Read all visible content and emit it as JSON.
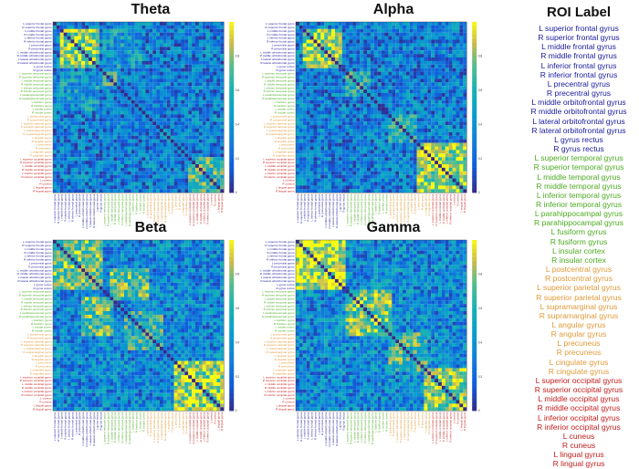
{
  "legend": {
    "title": "ROI Label"
  },
  "chart_data": {
    "type": "heatmap",
    "colormap": "parula",
    "value_range": [
      0,
      1
    ],
    "colorbar_ticks": [
      "0.8",
      "0.6",
      "0.4",
      "0.2",
      "0"
    ],
    "lobe_colors": {
      "frontal": "#1a1a9e",
      "temporal": "#4cab21",
      "parietal": "#e09a3a",
      "occipital": "#c41c1c"
    },
    "rois": [
      {
        "label": "L superior frontal gyrus",
        "lobe": "frontal"
      },
      {
        "label": "R superior frontal gyrus",
        "lobe": "frontal"
      },
      {
        "label": "L middle frontal gyrus",
        "lobe": "frontal"
      },
      {
        "label": "R middle frontal gyrus",
        "lobe": "frontal"
      },
      {
        "label": "L inferior frontal gyrus",
        "lobe": "frontal"
      },
      {
        "label": "R inferior frontal gyrus",
        "lobe": "frontal"
      },
      {
        "label": "L precentral gyrus",
        "lobe": "frontal"
      },
      {
        "label": "R precentral gyrus",
        "lobe": "frontal"
      },
      {
        "label": "L middle orbitofrontal gyrus",
        "lobe": "frontal"
      },
      {
        "label": "R middle orbitofrontal gyrus",
        "lobe": "frontal"
      },
      {
        "label": "L lateral orbitofrontal gyrus",
        "lobe": "frontal"
      },
      {
        "label": "R lateral orbitofrontal gyrus",
        "lobe": "frontal"
      },
      {
        "label": "L gyrus rectus",
        "lobe": "frontal"
      },
      {
        "label": "R gyrus rectus",
        "lobe": "frontal"
      },
      {
        "label": "L superior temporal gyrus",
        "lobe": "temporal"
      },
      {
        "label": "R superior temporal gyrus",
        "lobe": "temporal"
      },
      {
        "label": "L middle temporal gyrus",
        "lobe": "temporal"
      },
      {
        "label": "R middle temporal gyrus",
        "lobe": "temporal"
      },
      {
        "label": "L inferior temporal gyrus",
        "lobe": "temporal"
      },
      {
        "label": "R inferior temporal gyrus",
        "lobe": "temporal"
      },
      {
        "label": "L parahippocampal gyrus",
        "lobe": "temporal"
      },
      {
        "label": "R parahippocampal gyrus",
        "lobe": "temporal"
      },
      {
        "label": "L fusiform gyrus",
        "lobe": "temporal"
      },
      {
        "label": "R fusiform gyrus",
        "lobe": "temporal"
      },
      {
        "label": "L insular cortex",
        "lobe": "temporal"
      },
      {
        "label": "R insular cortex",
        "lobe": "temporal"
      },
      {
        "label": "L postcentral gyrus",
        "lobe": "parietal"
      },
      {
        "label": "R postcentral gyrus",
        "lobe": "parietal"
      },
      {
        "label": "L superior parietal gyrus",
        "lobe": "parietal"
      },
      {
        "label": "R superior parietal gyrus",
        "lobe": "parietal"
      },
      {
        "label": "L supramarginal gyrus",
        "lobe": "parietal"
      },
      {
        "label": "R supramarginal gyrus",
        "lobe": "parietal"
      },
      {
        "label": "L angular gyrus",
        "lobe": "parietal"
      },
      {
        "label": "R angular gyrus",
        "lobe": "parietal"
      },
      {
        "label": "L precuneus",
        "lobe": "parietal"
      },
      {
        "label": "R precuneus",
        "lobe": "parietal"
      },
      {
        "label": "L cingulate gyrus",
        "lobe": "parietal"
      },
      {
        "label": "R cingulate gyrus",
        "lobe": "parietal"
      },
      {
        "label": "L superior occipital gyrus",
        "lobe": "occipital"
      },
      {
        "label": "R superior occipital gyrus",
        "lobe": "occipital"
      },
      {
        "label": "L middle occipital gyrus",
        "lobe": "occipital"
      },
      {
        "label": "R middle occipital gyrus",
        "lobe": "occipital"
      },
      {
        "label": "L inferior occipital gyrus",
        "lobe": "occipital"
      },
      {
        "label": "R inferior occipital gyrus",
        "lobe": "occipital"
      },
      {
        "label": "L cuneus",
        "lobe": "occipital"
      },
      {
        "label": "R cuneus",
        "lobe": "occipital"
      },
      {
        "label": "L lingual gyrus",
        "lobe": "occipital"
      },
      {
        "label": "R lingual gyrus",
        "lobe": "occipital"
      }
    ],
    "panels": [
      {
        "title": "Theta",
        "baseline": 0.3,
        "blocks": [
          {
            "rows": [
              2,
              12
            ],
            "cols": [
              2,
              12
            ],
            "value": 0.8
          },
          {
            "rows": [
              14,
              17
            ],
            "cols": [
              14,
              17
            ],
            "value": 0.6
          },
          {
            "rows": [
              38,
              47
            ],
            "cols": [
              38,
              47
            ],
            "value": 0.65
          },
          {
            "rows": [
              2,
              12
            ],
            "cols": [
              14,
              24
            ],
            "value": 0.45
          }
        ]
      },
      {
        "title": "Alpha",
        "baseline": 0.3,
        "blocks": [
          {
            "rows": [
              2,
              12
            ],
            "cols": [
              2,
              12
            ],
            "value": 0.85
          },
          {
            "rows": [
              14,
              20
            ],
            "cols": [
              14,
              20
            ],
            "value": 0.55
          },
          {
            "rows": [
              34,
              47
            ],
            "cols": [
              34,
              47
            ],
            "value": 0.85
          },
          {
            "rows": [
              26,
              33
            ],
            "cols": [
              26,
              33
            ],
            "value": 0.55
          }
        ]
      },
      {
        "title": "Beta",
        "baseline": 0.35,
        "blocks": [
          {
            "rows": [
              0,
              13
            ],
            "cols": [
              0,
              13
            ],
            "value": 0.75
          },
          {
            "rows": [
              8,
              16
            ],
            "cols": [
              16,
              26
            ],
            "value": 0.7
          },
          {
            "rows": [
              34,
              47
            ],
            "cols": [
              34,
              47
            ],
            "value": 0.85
          },
          {
            "rows": [
              20,
              30
            ],
            "cols": [
              20,
              30
            ],
            "value": 0.6
          }
        ]
      },
      {
        "title": "Gamma",
        "baseline": 0.35,
        "blocks": [
          {
            "rows": [
              0,
              13
            ],
            "cols": [
              0,
              13
            ],
            "value": 0.9
          },
          {
            "rows": [
              14,
              26
            ],
            "cols": [
              14,
              26
            ],
            "value": 0.75
          },
          {
            "rows": [
              26,
              36
            ],
            "cols": [
              26,
              36
            ],
            "value": 0.65
          },
          {
            "rows": [
              36,
              47
            ],
            "cols": [
              36,
              47
            ],
            "value": 0.8
          }
        ]
      }
    ]
  }
}
